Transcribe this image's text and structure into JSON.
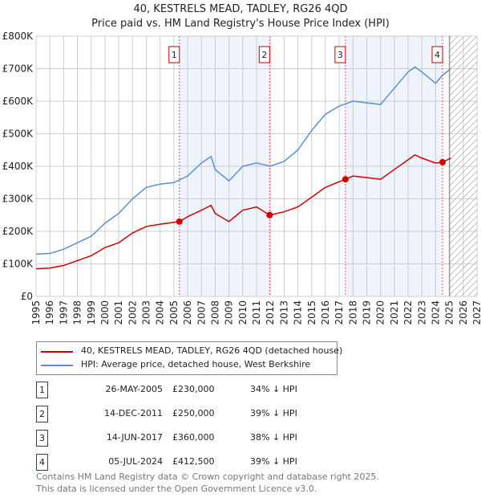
{
  "chart_data": {
    "type": "line",
    "title": "40, KESTRELS MEAD, TADLEY, RG26 4QD",
    "subtitle": "Price paid vs. HM Land Registry's House Price Index (HPI)",
    "xlim": [
      1995,
      2027
    ],
    "ylim": [
      0,
      800000
    ],
    "x_ticks": [
      "1995",
      "1996",
      "1997",
      "1998",
      "1999",
      "2000",
      "2001",
      "2002",
      "2003",
      "2004",
      "2005",
      "2006",
      "2007",
      "2008",
      "2009",
      "2010",
      "2011",
      "2012",
      "2013",
      "2014",
      "2015",
      "2016",
      "2017",
      "2018",
      "2019",
      "2020",
      "2021",
      "2022",
      "2023",
      "2024",
      "2025",
      "2026",
      "2027"
    ],
    "y_ticks": [
      {
        "v": 0,
        "label": "£0"
      },
      {
        "v": 100000,
        "label": "£100K"
      },
      {
        "v": 200000,
        "label": "£200K"
      },
      {
        "v": 300000,
        "label": "£300K"
      },
      {
        "v": 400000,
        "label": "£400K"
      },
      {
        "v": 500000,
        "label": "£500K"
      },
      {
        "v": 600000,
        "label": "£600K"
      },
      {
        "v": 700000,
        "label": "£700K"
      },
      {
        "v": 800000,
        "label": "£800K"
      }
    ],
    "forecast_start": 2025.0,
    "series": [
      {
        "name": "40, KESTRELS MEAD, TADLEY, RG26 4QD (detached house)",
        "color": "#cc0000",
        "x": [
          1995,
          1996,
          1997,
          1998,
          1999,
          2000,
          2001,
          2002,
          2003,
          2004,
          2005.4,
          2006,
          2007,
          2007.7,
          2008,
          2009,
          2010,
          2011,
          2011.95,
          2013,
          2014,
          2015,
          2016,
          2017.45,
          2018,
          2019,
          2020,
          2021,
          2022,
          2022.5,
          2023,
          2024,
          2024.5,
          2025.1
        ],
        "y": [
          85000,
          87000,
          95000,
          110000,
          125000,
          150000,
          165000,
          195000,
          215000,
          222000,
          230000,
          245000,
          265000,
          280000,
          255000,
          230000,
          265000,
          275000,
          250000,
          260000,
          275000,
          305000,
          335000,
          360000,
          370000,
          365000,
          360000,
          390000,
          420000,
          435000,
          425000,
          410000,
          412500,
          425000
        ]
      },
      {
        "name": "HPI: Average price, detached house, West Berkshire",
        "color": "#5b8fd4",
        "x": [
          1995,
          1996,
          1997,
          1998,
          1999,
          2000,
          2001,
          2002,
          2003,
          2004,
          2005,
          2006,
          2007,
          2007.7,
          2008,
          2009,
          2010,
          2011,
          2012,
          2013,
          2014,
          2015,
          2016,
          2017,
          2018,
          2019,
          2020,
          2021,
          2022,
          2022.5,
          2023,
          2024,
          2024.5,
          2025.1
        ],
        "y": [
          130000,
          132000,
          145000,
          165000,
          185000,
          225000,
          255000,
          300000,
          335000,
          345000,
          350000,
          370000,
          410000,
          430000,
          390000,
          355000,
          400000,
          410000,
          400000,
          415000,
          450000,
          510000,
          560000,
          585000,
          600000,
          595000,
          590000,
          640000,
          690000,
          705000,
          690000,
          655000,
          680000,
          700000
        ]
      }
    ],
    "sales": [
      {
        "n": "1",
        "date": "26-MAY-2005",
        "x": 2005.4,
        "price": "£230,000",
        "value": 230000,
        "delta": "34% ↓ HPI"
      },
      {
        "n": "2",
        "date": "14-DEC-2011",
        "x": 2011.95,
        "price": "£250,000",
        "value": 250000,
        "delta": "39% ↓ HPI"
      },
      {
        "n": "3",
        "date": "14-JUN-2017",
        "x": 2017.45,
        "price": "£360,000",
        "value": 360000,
        "delta": "38% ↓ HPI"
      },
      {
        "n": "4",
        "date": "05-JUL-2024",
        "x": 2024.5,
        "price": "£412,500",
        "value": 412500,
        "delta": "39% ↓ HPI"
      }
    ]
  },
  "footer": {
    "line1": "Contains HM Land Registry data © Crown copyright and database right 2025.",
    "line2": "This data is licensed under the Open Government Licence v3.0."
  }
}
